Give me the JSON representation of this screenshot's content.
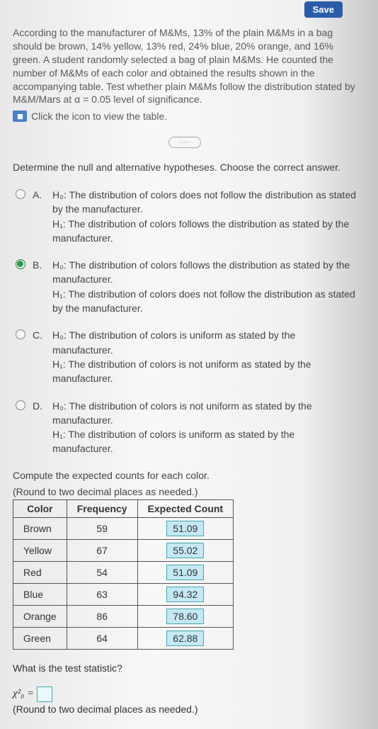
{
  "saveLabel": "Save",
  "problemText": "According to the manufacturer of M&Ms, 13% of the plain M&Ms in a bag should be brown, 14% yellow, 13% red, 24% blue, 20% orange, and 16% green. A student randomly selected a bag of plain M&Ms. He counted the number of M&Ms of each color and obtained the results shown in the accompanying table. Test whether plain M&Ms follow the distribution stated by M&M/Mars at α = 0.05 level of significance.",
  "tableLinkText": "Click the icon to view the table.",
  "dividerText": "·····",
  "hypothesisPrompt": "Determine the null and alternative hypotheses. Choose the correct answer.",
  "options": {
    "a": {
      "letter": "A.",
      "h0": "H₀: The distribution of colors does not follow the distribution as stated by the manufacturer.",
      "h1": "H₁: The distribution of colors follows the distribution as stated by the manufacturer."
    },
    "b": {
      "letter": "B.",
      "h0": "H₀: The distribution of colors follows the distribution as stated by the manufacturer.",
      "h1": "H₁: The distribution of colors does not follow the distribution as stated by the manufacturer."
    },
    "c": {
      "letter": "C.",
      "h0": "H₀: The distribution of colors is uniform as stated by the manufacturer.",
      "h1": "H₁: The distribution of colors is not uniform as stated by the manufacturer."
    },
    "d": {
      "letter": "D.",
      "h0": "H₀: The distribution of colors is not uniform as stated by the manufacturer.",
      "h1": "H₁: The distribution of colors is uniform as stated by the manufacturer."
    }
  },
  "selectedOption": "b",
  "computeText1": "Compute the expected counts for each color.",
  "computeText2": "(Round to two decimal places as needed.)",
  "table": {
    "headers": {
      "color": "Color",
      "freq": "Frequency",
      "expected": "Expected Count"
    },
    "rows": [
      {
        "color": "Brown",
        "freq": "59",
        "expected": "51.09"
      },
      {
        "color": "Yellow",
        "freq": "67",
        "expected": "55.02"
      },
      {
        "color": "Red",
        "freq": "54",
        "expected": "51.09"
      },
      {
        "color": "Blue",
        "freq": "63",
        "expected": "94.32"
      },
      {
        "color": "Orange",
        "freq": "86",
        "expected": "78.60"
      },
      {
        "color": "Green",
        "freq": "64",
        "expected": "62.88"
      }
    ]
  },
  "testStatQuestion": "What is the test statistic?",
  "chiLabel": "χ²₀ = ",
  "roundNote": "(Round to two decimal places as needed.)",
  "colors": {
    "expectedCellBg": "#c5e8f5",
    "expectedCellBorder": "#44aaaa",
    "radioChecked": "#2a9a4a",
    "saveBg": "#2a5caa"
  }
}
